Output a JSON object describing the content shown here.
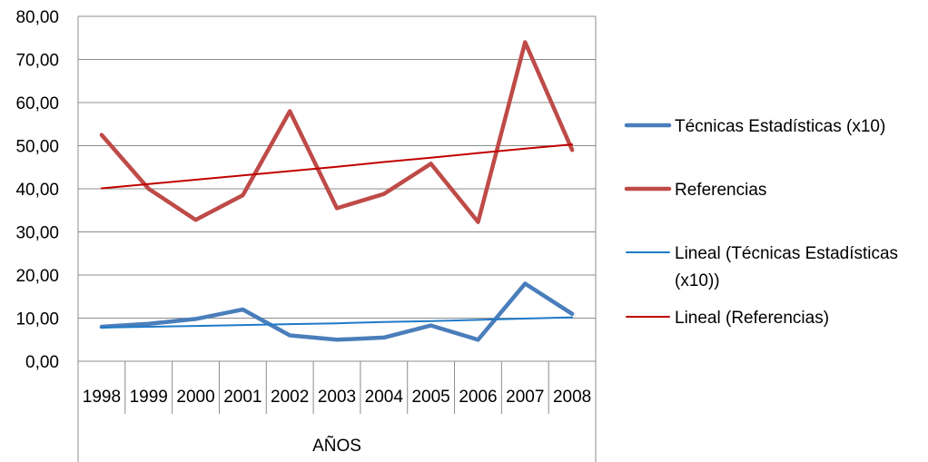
{
  "chart_data": {
    "type": "line",
    "title": "",
    "xlabel": "AÑOS",
    "ylabel": "",
    "categories": [
      "1998",
      "1999",
      "2000",
      "2001",
      "2002",
      "2003",
      "2004",
      "2005",
      "2006",
      "2007",
      "2008"
    ],
    "ylim": [
      0,
      80
    ],
    "yticks": [
      "0,00",
      "10,00",
      "20,00",
      "30,00",
      "40,00",
      "50,00",
      "60,00",
      "70,00",
      "80,00"
    ],
    "grid": "horizontal",
    "legend_position": "right",
    "series": [
      {
        "name": "Técnicas Estadísticas (x10)",
        "color": "#4a7ebb",
        "style": "thick",
        "values": [
          8.0,
          8.7,
          9.8,
          12.0,
          6.0,
          5.0,
          5.5,
          8.3,
          5.0,
          18.0,
          11.0
        ]
      },
      {
        "name": "Referencias",
        "color": "#be4b48",
        "style": "thick",
        "values": [
          52.5,
          40.0,
          32.8,
          38.5,
          58.0,
          35.5,
          38.8,
          45.8,
          32.3,
          74.0,
          49.0
        ]
      },
      {
        "name": "Lineal (Técnicas Estadísticas (x10))",
        "color": "#1f7ac8",
        "style": "thin",
        "values": [
          7.8,
          8.0,
          8.2,
          8.4,
          8.6,
          8.8,
          9.1,
          9.3,
          9.6,
          9.9,
          10.2
        ]
      },
      {
        "name": "Lineal (Referencias)",
        "color": "#c00000",
        "style": "thin",
        "values": [
          40.1,
          41.1,
          42.1,
          43.1,
          44.1,
          45.1,
          46.2,
          47.2,
          48.3,
          49.3,
          50.3
        ]
      }
    ],
    "legend": {
      "entries": [
        [
          "Técnicas Estadísticas (x10)"
        ],
        [
          "Referencias"
        ],
        [
          "Lineal (Técnicas Estadísticas",
          "(x10))"
        ],
        [
          "Lineal (Referencias)"
        ]
      ]
    },
    "gridline_color": "#8c8c8c"
  }
}
